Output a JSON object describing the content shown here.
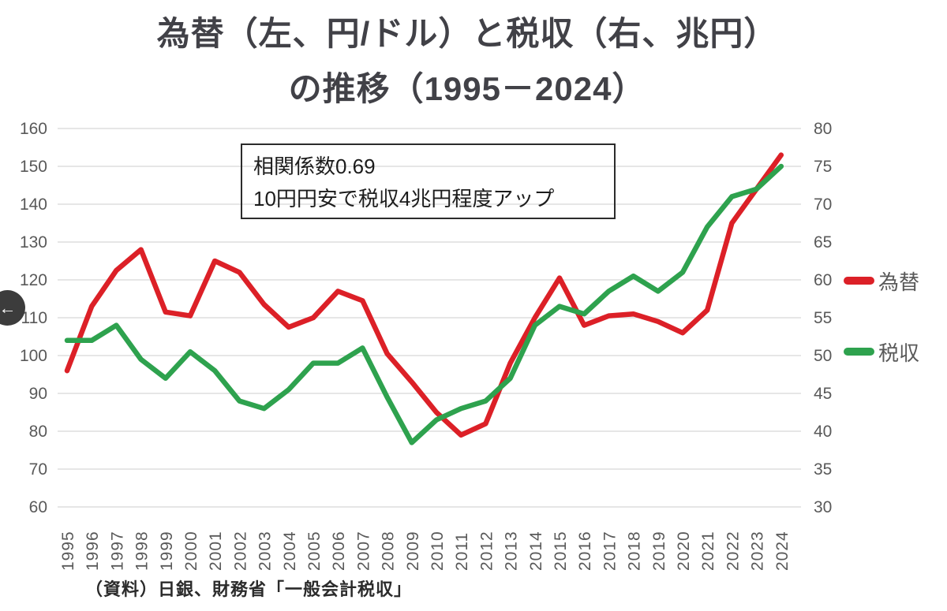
{
  "title": {
    "line1": "為替（左、円/ドル）と税収（右、兆円）",
    "line2": "の推移（1995－2024）"
  },
  "annotation": {
    "line1": "相関係数0.69",
    "line2": "10円円安で税収4兆円程度アップ"
  },
  "source": "（資料）日銀、財務省「一般会計税収」",
  "back_button": {
    "icon": "←"
  },
  "legend": [
    {
      "label": "為替",
      "color": "#dc2027"
    },
    {
      "label": "税収",
      "color": "#2ea24e"
    }
  ],
  "chart_data": {
    "type": "line",
    "title": "為替（左、円/ドル）と税収（右、兆円）の推移（1995－2024）",
    "grid": true,
    "gridline_color": "#d8d8d8",
    "label_color": "#595959",
    "x": [
      1995,
      1996,
      1997,
      1998,
      1999,
      2000,
      2001,
      2002,
      2003,
      2004,
      2005,
      2006,
      2007,
      2008,
      2009,
      2010,
      2011,
      2012,
      2013,
      2014,
      2015,
      2016,
      2017,
      2018,
      2019,
      2020,
      2021,
      2022,
      2023,
      2024
    ],
    "series": [
      {
        "name": "為替",
        "axis": "left",
        "unit": "円/ドル",
        "color": "#dc2027",
        "values": [
          96,
          113,
          122.5,
          128,
          111.5,
          110.5,
          125,
          122,
          113.5,
          107.5,
          110,
          117,
          114.5,
          100.5,
          93,
          85,
          79,
          82,
          98,
          110,
          120.5,
          108,
          110.5,
          111,
          109,
          106,
          112,
          135,
          144,
          153
        ]
      },
      {
        "name": "税収",
        "axis": "right",
        "unit": "兆円",
        "color": "#2ea24e",
        "values": [
          52,
          52,
          54,
          49.5,
          47,
          50.5,
          48,
          44,
          43,
          45.5,
          49,
          49,
          51,
          44.5,
          38.5,
          41.5,
          43,
          44,
          47,
          54,
          56.5,
          55.5,
          58.5,
          60.5,
          58.5,
          61,
          67,
          71,
          72,
          75
        ]
      }
    ],
    "left_axis": {
      "min": 60,
      "max": 160,
      "step": 10,
      "ticks": [
        160,
        150,
        140,
        130,
        120,
        110,
        100,
        90,
        80,
        70,
        60
      ]
    },
    "right_axis": {
      "min": 30,
      "max": 80,
      "step": 5,
      "ticks": [
        80,
        75,
        70,
        65,
        60,
        55,
        50,
        45,
        40,
        35,
        30
      ]
    },
    "legend_position": "right"
  }
}
